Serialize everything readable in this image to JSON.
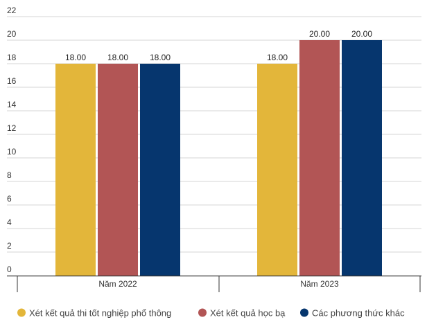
{
  "chart_data": {
    "type": "bar",
    "title": "",
    "xlabel": "",
    "ylabel": "",
    "ylim": [
      0,
      22
    ],
    "yticks": [
      0,
      2,
      4,
      6,
      8,
      10,
      12,
      14,
      16,
      18,
      20,
      22
    ],
    "grid": true,
    "legend_position": "bottom",
    "categories": [
      "Năm 2022",
      "Năm 2023"
    ],
    "series": [
      {
        "name": "Xét kết quả thi tốt nghiệp phổ thông",
        "color": "#e3b63a",
        "values": [
          18.0,
          18.0
        ],
        "labels": [
          "18.00",
          "18.00"
        ]
      },
      {
        "name": "Xét kết quả học bạ",
        "color": "#b25555",
        "values": [
          18.0,
          20.0
        ],
        "labels": [
          "18.00",
          "20.00"
        ]
      },
      {
        "name": "Các phương thức khác",
        "color": "#06366e",
        "values": [
          18.0,
          20.0
        ],
        "labels": [
          "18.00",
          "20.00"
        ]
      }
    ]
  }
}
